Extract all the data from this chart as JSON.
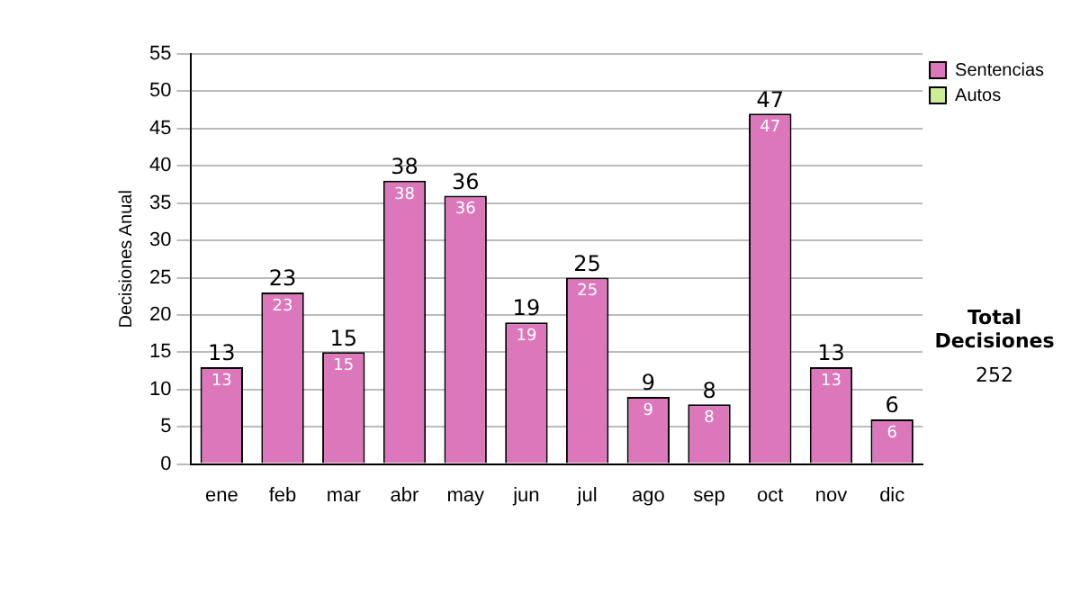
{
  "chart_data": {
    "type": "bar",
    "ylabel": "Decisiones Anual",
    "categories": [
      "ene",
      "feb",
      "mar",
      "abr",
      "may",
      "jun",
      "jul",
      "ago",
      "sep",
      "oct",
      "nov",
      "dic"
    ],
    "series": [
      {
        "name": "Sentencias",
        "color": "#dd77bb",
        "values": [
          13,
          23,
          15,
          38,
          36,
          19,
          25,
          9,
          8,
          47,
          13,
          6
        ],
        "value_labels": [
          "13",
          "23",
          "15",
          "38",
          "36",
          "19",
          "25",
          "9",
          "8",
          "47",
          "13",
          "6"
        ]
      },
      {
        "name": "Autos",
        "color": "#ccee99",
        "values": [
          0,
          0,
          0,
          0,
          0,
          0,
          0,
          0,
          0,
          0,
          0,
          0
        ],
        "value_labels": [
          null,
          null,
          null,
          null,
          null,
          null,
          null,
          null,
          null,
          null,
          null,
          null
        ]
      }
    ],
    "stacked": true,
    "totals": [
      "13",
      "23",
      "15",
      "38",
      "36",
      "19",
      "25",
      "9",
      "8",
      "47",
      "13",
      "6"
    ],
    "ylim": [
      0,
      55
    ],
    "yticks": [
      0,
      5,
      10,
      15,
      20,
      25,
      30,
      35,
      40,
      45,
      50,
      55
    ],
    "grid": "y",
    "legend": "right",
    "annotations": [
      "Total Decisiones",
      "252"
    ]
  }
}
